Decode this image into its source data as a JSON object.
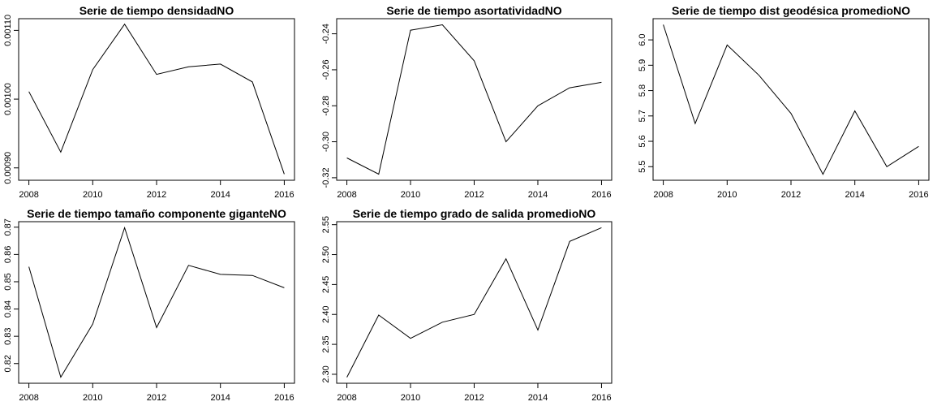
{
  "chart_data": [
    {
      "type": "line",
      "title": "Serie de tiempo densidadNO",
      "xlabel": "",
      "ylabel": "",
      "x": [
        2008,
        2009,
        2010,
        2011,
        2012,
        2013,
        2014,
        2015,
        2016
      ],
      "values": [
        0.001011,
        0.000923,
        0.001043,
        0.001109,
        0.001036,
        0.001047,
        0.001051,
        0.001025,
        0.000891
      ],
      "xticks": [
        2008,
        2010,
        2012,
        2014,
        2016
      ],
      "xtick_labels": [
        "2008",
        "2010",
        "2012",
        "2014",
        "2016"
      ],
      "yticks": [
        0.0009,
        0.001,
        0.0011
      ],
      "ytick_labels": [
        "0.00090",
        "0.00100",
        "0.00110"
      ],
      "xlim": [
        2007.68,
        2016.32
      ],
      "ylim": [
        0.000882,
        0.001117
      ]
    },
    {
      "type": "line",
      "title": "Serie de tiempo asortatividadNO",
      "xlabel": "",
      "ylabel": "",
      "x": [
        2008,
        2009,
        2010,
        2011,
        2012,
        2013,
        2014,
        2015,
        2016
      ],
      "values": [
        -0.309,
        -0.318,
        -0.238,
        -0.235,
        -0.255,
        -0.3,
        -0.28,
        -0.27,
        -0.267
      ],
      "xticks": [
        2008,
        2010,
        2012,
        2014,
        2016
      ],
      "xtick_labels": [
        "2008",
        "2010",
        "2012",
        "2014",
        "2016"
      ],
      "yticks": [
        -0.32,
        -0.3,
        -0.28,
        -0.26,
        -0.24
      ],
      "ytick_labels": [
        "-0.32",
        "-0.30",
        "-0.28",
        "-0.26",
        "-0.24"
      ],
      "xlim": [
        2007.68,
        2016.32
      ],
      "ylim": [
        -0.3214,
        -0.2316
      ]
    },
    {
      "type": "line",
      "title": "Serie de tiempo dist geodésica promedioNO",
      "xlabel": "",
      "ylabel": "",
      "x": [
        2008,
        2009,
        2010,
        2011,
        2012,
        2013,
        2014,
        2015,
        2016
      ],
      "values": [
        6.06,
        5.67,
        5.98,
        5.86,
        5.71,
        5.47,
        5.72,
        5.5,
        5.58
      ],
      "xticks": [
        2008,
        2010,
        2012,
        2014,
        2016
      ],
      "xtick_labels": [
        "2008",
        "2010",
        "2012",
        "2014",
        "2016"
      ],
      "yticks": [
        5.5,
        5.6,
        5.7,
        5.8,
        5.9,
        6.0
      ],
      "ytick_labels": [
        "5.5",
        "5.6",
        "5.7",
        "5.8",
        "5.9",
        "6.0"
      ],
      "xlim": [
        2007.68,
        2016.32
      ],
      "ylim": [
        5.4464,
        6.0836
      ]
    },
    {
      "type": "line",
      "title": "Serie de tiempo tamaño componente giganteNO",
      "xlabel": "",
      "ylabel": "",
      "x": [
        2008,
        2009,
        2010,
        2011,
        2012,
        2013,
        2014,
        2015,
        2016
      ],
      "values": [
        0.8555,
        0.815,
        0.8345,
        0.8698,
        0.8332,
        0.856,
        0.8527,
        0.8523,
        0.8478
      ],
      "xticks": [
        2008,
        2010,
        2012,
        2014,
        2016
      ],
      "xtick_labels": [
        "2008",
        "2010",
        "2012",
        "2014",
        "2016"
      ],
      "yticks": [
        0.82,
        0.83,
        0.84,
        0.85,
        0.86,
        0.87
      ],
      "ytick_labels": [
        "0.82",
        "0.83",
        "0.84",
        "0.85",
        "0.86",
        "0.87"
      ],
      "xlim": [
        2007.68,
        2016.32
      ],
      "ylim": [
        0.81278,
        0.87202
      ]
    },
    {
      "type": "line",
      "title": "Serie de tiempo grado de salida promedioNO",
      "xlabel": "",
      "ylabel": "",
      "x": [
        2008,
        2009,
        2010,
        2011,
        2012,
        2013,
        2014,
        2015,
        2016
      ],
      "values": [
        2.295,
        2.399,
        2.36,
        2.387,
        2.4,
        2.493,
        2.374,
        2.522,
        2.545
      ],
      "xticks": [
        2008,
        2010,
        2012,
        2014,
        2016
      ],
      "xtick_labels": [
        "2008",
        "2010",
        "2012",
        "2014",
        "2016"
      ],
      "yticks": [
        2.3,
        2.35,
        2.4,
        2.45,
        2.5,
        2.55
      ],
      "ytick_labels": [
        "2.30",
        "2.35",
        "2.40",
        "2.45",
        "2.50",
        "2.55"
      ],
      "xlim": [
        2007.68,
        2016.32
      ],
      "ylim": [
        2.285,
        2.555
      ]
    }
  ]
}
